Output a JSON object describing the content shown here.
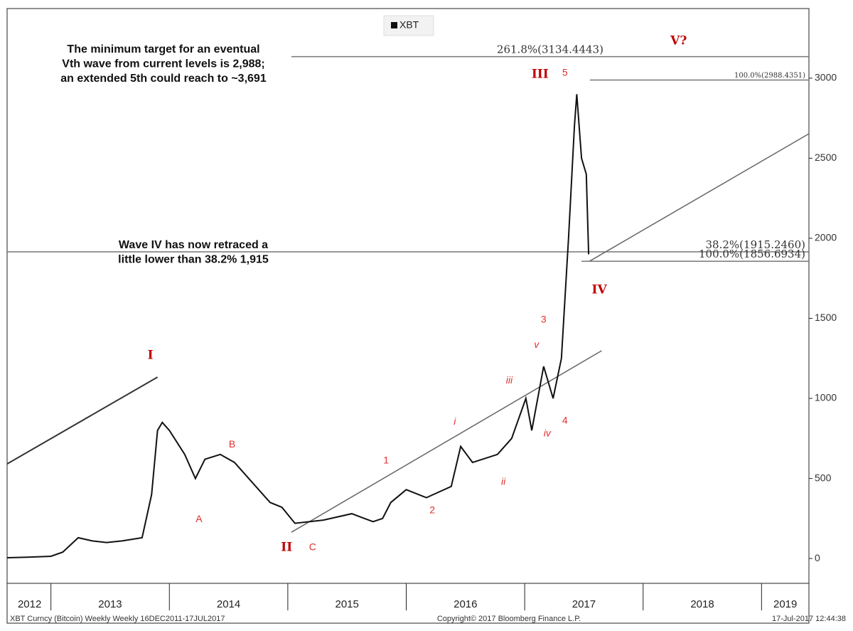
{
  "chart_data": {
    "type": "line",
    "legend": "XBT",
    "series": [
      {
        "name": "XBT",
        "color": "#111111",
        "x": [
          2012.63,
          2012.8,
          2013.0,
          2013.1,
          2013.23,
          2013.35,
          2013.47,
          2013.6,
          2013.77,
          2013.85,
          2013.9,
          2013.94,
          2014.0,
          2014.13,
          2014.22,
          2014.3,
          2014.43,
          2014.55,
          2014.67,
          2014.85,
          2014.95,
          2015.06,
          2015.3,
          2015.54,
          2015.72,
          2015.8,
          2015.87,
          2016.0,
          2016.17,
          2016.38,
          2016.46,
          2016.56,
          2016.77,
          2016.89,
          2017.01,
          2017.06,
          2017.16,
          2017.24,
          2017.31,
          2017.37,
          2017.42,
          2017.44,
          2017.48,
          2017.52,
          2017.54
        ],
        "values": [
          5,
          8,
          14,
          40,
          130,
          110,
          100,
          110,
          130,
          400,
          800,
          850,
          800,
          650,
          500,
          620,
          650,
          600,
          500,
          350,
          320,
          220,
          240,
          280,
          230,
          250,
          350,
          430,
          380,
          450,
          700,
          600,
          650,
          750,
          1000,
          800,
          1200,
          1000,
          1250,
          2000,
          2700,
          2900,
          2500,
          2400,
          1900
        ]
      }
    ],
    "xlim": [
      2012.63,
      2019.4
    ],
    "xticks": [
      {
        "value": 2012.82,
        "label": "2012"
      },
      {
        "value": 2013.5,
        "label": "2013"
      },
      {
        "value": 2014.5,
        "label": "2014"
      },
      {
        "value": 2015.5,
        "label": "2015"
      },
      {
        "value": 2016.5,
        "label": "2016"
      },
      {
        "value": 2017.5,
        "label": "2017"
      },
      {
        "value": 2018.5,
        "label": "2018"
      },
      {
        "value": 2019.2,
        "label": "2019"
      }
    ],
    "xdividers": [
      2013,
      2014,
      2015,
      2016,
      2017,
      2018,
      2019
    ],
    "ylim": [
      -155,
      3435
    ],
    "yticks": [
      0,
      500,
      1000,
      1500,
      2000,
      2500,
      3000
    ],
    "fib_levels": [
      {
        "label": "261.8%(3134.4443)",
        "value": 3134.4443,
        "from": 2015.03
      },
      {
        "label": "100.0%(2988.4351)",
        "value": 2988.4351,
        "from": 2017.55
      },
      {
        "label": "38.2%(1915.2460)",
        "value": 1915.246,
        "from": 2012.63
      },
      {
        "label": "100.0%(1856.6934)",
        "value": 1856.6934,
        "from": 2017.48
      }
    ],
    "trendlines": [
      {
        "x": [
          2012.63,
          2013.9
        ],
        "y": [
          591,
          1133
        ]
      },
      {
        "x": [
          2015.03,
          2017.65
        ],
        "y": [
          164,
          1298
        ]
      },
      {
        "x": [
          2017.55,
          2019.4
        ],
        "y": [
          1858,
          2653
        ]
      }
    ],
    "wave_labels": [
      {
        "text": "I",
        "x": 2013.84,
        "y": 1267,
        "major": true
      },
      {
        "text": "II",
        "x": 2014.99,
        "y": 67,
        "major": true
      },
      {
        "text": "III",
        "x": 2017.13,
        "y": 3022,
        "major": true
      },
      {
        "text": "IV",
        "x": 2017.63,
        "y": 1676,
        "major": true
      },
      {
        "text": "V?",
        "x": 2018.3,
        "y": 3231,
        "major": true
      },
      {
        "text": "A",
        "x": 2014.25,
        "y": 244,
        "major": false
      },
      {
        "text": "B",
        "x": 2014.53,
        "y": 711,
        "major": false
      },
      {
        "text": "C",
        "x": 2015.21,
        "y": 67,
        "major": false
      },
      {
        "text": "1",
        "x": 2015.83,
        "y": 609,
        "major": false
      },
      {
        "text": "2",
        "x": 2016.22,
        "y": 298,
        "major": false
      },
      {
        "text": "3",
        "x": 2017.16,
        "y": 1489,
        "major": false
      },
      {
        "text": "4",
        "x": 2017.34,
        "y": 858,
        "major": false
      },
      {
        "text": "5",
        "x": 2017.34,
        "y": 3031,
        "major": false
      },
      {
        "text": "i",
        "x": 2016.41,
        "y": 853,
        "major": false
      },
      {
        "text": "ii",
        "x": 2016.82,
        "y": 476,
        "major": false
      },
      {
        "text": "iii",
        "x": 2016.87,
        "y": 1111,
        "major": false
      },
      {
        "text": "iv",
        "x": 2017.19,
        "y": 778,
        "major": false
      },
      {
        "text": "v",
        "x": 2017.1,
        "y": 1333,
        "major": false
      }
    ],
    "notes": [
      [
        "The minimum target  for  an eventual",
        "Vth wave from current levels is 2,988;",
        "an extended 5th could reach to ~3,691"
      ],
      [
        "Wave IV has now retraced a",
        "little lower than 38.2% 1,915"
      ]
    ],
    "footer": [
      "XBT Curncy (Bitcoin) Weekly   Weekly 16DEC2011-17JUL2017",
      "Copyright© 2017 Bloomberg Finance L.P.",
      "17-Jul-2017 12:44:38"
    ]
  }
}
